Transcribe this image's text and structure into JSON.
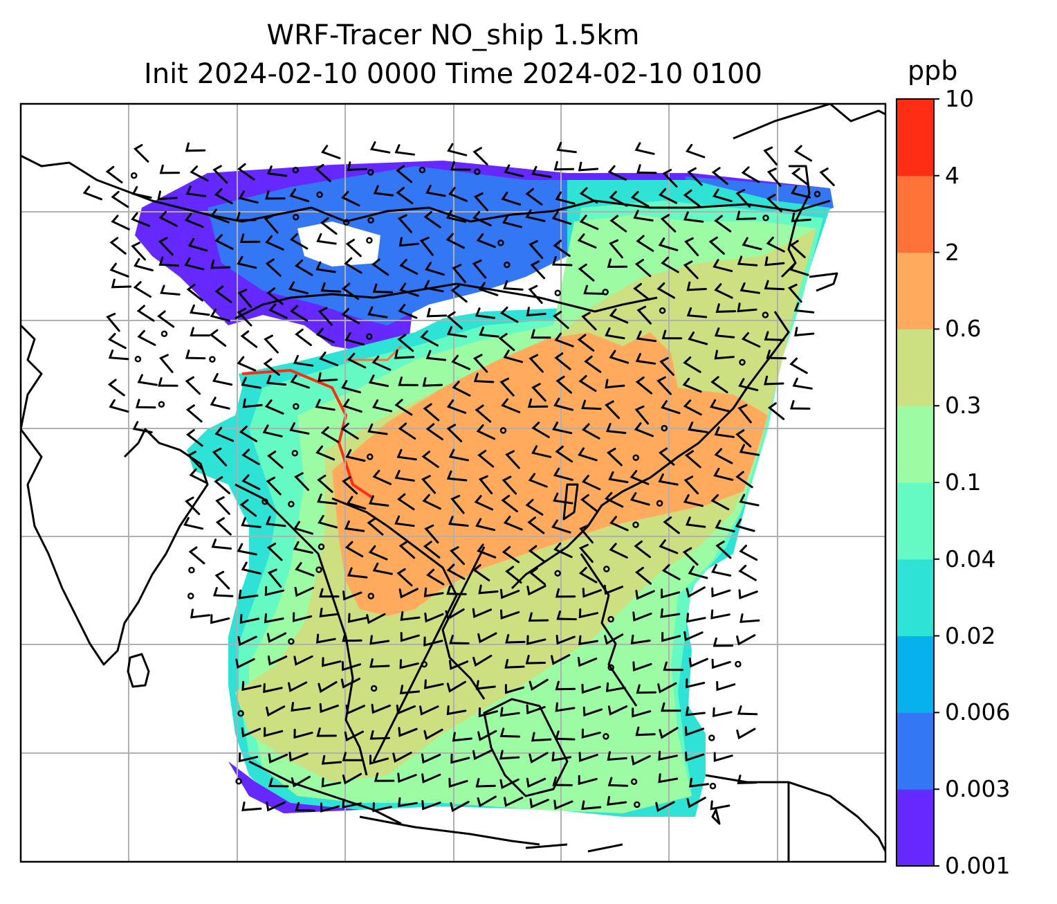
{
  "title_line1": "WRF-Tracer NO_ship 1.5km",
  "title_line2": "Init 2024-02-10 0000 Time 2024-02-10 0100",
  "colorbar": {
    "unit": "ppb",
    "ticks": [
      "0.001",
      "0.003",
      "0.006",
      "0.02",
      "0.04",
      "0.1",
      "0.3",
      "0.6",
      "2",
      "4",
      "10"
    ],
    "colors": [
      "#6528ff",
      "#3377f5",
      "#06b1ec",
      "#2ee3d6",
      "#65fac4",
      "#9bfca3",
      "#cce082",
      "#ffaa5c",
      "#ff7238",
      "#ff2d14"
    ]
  },
  "map": {
    "style": {
      "coast_color": "#000000",
      "grid_color": "#b0b0b0",
      "barb_color": "#000000"
    },
    "field_levels": [
      "no-data",
      "0.001-0.003",
      "0.003-0.006",
      "0.006-0.02",
      "0.02-0.04",
      "0.04-0.1",
      "0.1-0.3",
      "0.3-0.6",
      "0.6-2",
      "2-4"
    ]
  }
}
